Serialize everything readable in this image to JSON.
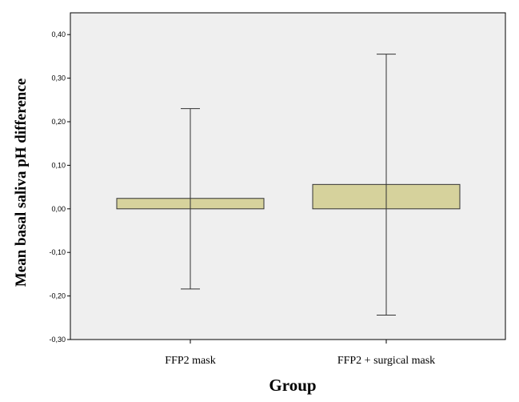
{
  "chart_data": {
    "type": "bar",
    "xlabel": "Group",
    "ylabel": "Mean basal saliva pH difference",
    "categories": [
      "FFP2 mask",
      "FFP2 + surgical mask"
    ],
    "values": [
      0.024,
      0.056
    ],
    "error_bars": [
      {
        "low": -0.184,
        "high": 0.23
      },
      {
        "low": -0.244,
        "high": 0.355
      }
    ],
    "ylim": [
      -0.3,
      0.45
    ],
    "yticks": [
      "-0,30",
      "-0,20",
      "-0,10",
      "0,00",
      "0,10",
      "0,20",
      "0,30",
      "0,40"
    ],
    "ytick_values": [
      -0.3,
      -0.2,
      -0.1,
      0.0,
      0.1,
      0.2,
      0.3,
      0.4
    ],
    "grid": false,
    "colors": {
      "plot_background": "#efefef",
      "bar_fill": "#d6d29c",
      "bar_stroke": "#333333",
      "error_bar": "#333333"
    }
  }
}
